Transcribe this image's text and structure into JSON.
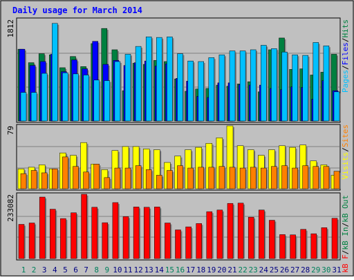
{
  "chart_data": {
    "type": "bar",
    "title": "Daily usage for March 2014",
    "categories": [
      "1",
      "2",
      "3",
      "4",
      "5",
      "6",
      "7",
      "8",
      "9",
      "10",
      "11",
      "12",
      "13",
      "14",
      "15",
      "16",
      "17",
      "18",
      "19",
      "20",
      "21",
      "22",
      "23",
      "24",
      "25",
      "26",
      "27",
      "28",
      "29",
      "30",
      "31"
    ],
    "weekend_days": [
      "1",
      "2",
      "8",
      "9",
      "15",
      "16",
      "22",
      "23",
      "29",
      "30"
    ],
    "colors": {
      "background": "#c0c0c0",
      "title": "#0000ff",
      "hits": "#008040",
      "files": "#0000ff",
      "pages": "#00c0ff",
      "visits": "#ffff00",
      "sites": "#ff8000",
      "kbytes": "#ff0000",
      "weekday_label": "#000080",
      "weekend_label": "#00805c"
    },
    "panels": [
      {
        "id": "hits-files-pages",
        "ymax_label": "1812",
        "ymax": 1812,
        "legend": [
          "Pages",
          "/",
          "Files",
          "/",
          "Hits"
        ],
        "legend_colors": [
          "#00c0ff",
          "#000000",
          "#0000ff",
          "#000000",
          "#008040"
        ],
        "series": [
          {
            "name": "Hits",
            "values": [
              1280,
              1040,
              1200,
              1180,
              950,
              1150,
              970,
              1380,
              1650,
              1270,
              540,
              1030,
              1010,
              1080,
              1060,
              750,
              530,
              570,
              580,
              640,
              620,
              660,
              700,
              520,
              1270,
              1480,
              920,
              930,
              820,
              870,
              1190
            ]
          },
          {
            "name": "Files",
            "values": [
              1280,
              990,
              1060,
              1190,
              880,
              1090,
              930,
              1420,
              1010,
              1080,
              990,
              1040,
              1070,
              980,
              1020,
              760,
              710,
              440,
              420,
              680,
              680,
              650,
              640,
              640,
              580,
              560,
              610,
              600,
              390,
              720,
              540
            ]
          },
          {
            "name": "Pages",
            "values": [
              510,
              510,
              850,
              1740,
              860,
              840,
              820,
              730,
              720,
              1060,
              1190,
              1330,
              1500,
              1490,
              1500,
              1200,
              1070,
              1060,
              1130,
              1180,
              1250,
              1250,
              1270,
              1350,
              1290,
              1230,
              1180,
              1170,
              1400,
              1340,
              520
            ]
          }
        ]
      },
      {
        "id": "visits-sites",
        "ymax_label": "79",
        "ymax": 79,
        "legend": [
          "Visits",
          "/",
          "Sites"
        ],
        "legend_colors": [
          "#ffff00",
          "#000000",
          "#ff8000"
        ],
        "series": [
          {
            "name": "Visits",
            "values": [
              25,
              27,
              30,
              25,
              45,
              42,
              58,
              31,
              24,
              48,
              53,
              53,
              50,
              49,
              33,
              41,
              49,
              52,
              57,
              64,
              79,
              54,
              49,
              42,
              49,
              54,
              52,
              55,
              35,
              30,
              17
            ]
          },
          {
            "name": "Sites",
            "values": [
              19,
              23,
              20,
              25,
              40,
              28,
              21,
              31,
              14,
              26,
              26,
              29,
              24,
              17,
              23,
              29,
              26,
              27,
              27,
              28,
              27,
              26,
              27,
              26,
              28,
              29,
              26,
              29,
              28,
              28,
              22
            ]
          }
        ]
      },
      {
        "id": "kbytes",
        "ymax_label": "233082",
        "ymax": 233082,
        "legend": [
          "kB F",
          "/",
          "kB In",
          "/",
          "kB Out"
        ],
        "legend_colors": [
          "#ff0000",
          "#000000",
          "#008040",
          "#000000",
          "#008040"
        ],
        "series": [
          {
            "name": "KBytes",
            "values": [
              124000,
              129000,
              223000,
              179000,
              145000,
              166000,
              233082,
              186000,
              130000,
              203000,
              152000,
              187000,
              186000,
              187000,
              129000,
              104000,
              115000,
              127000,
              170000,
              176000,
              200000,
              201000,
              150000,
              176000,
              139000,
              87000,
              86000,
              106000,
              90000,
              112000,
              146000
            ]
          }
        ]
      }
    ]
  }
}
